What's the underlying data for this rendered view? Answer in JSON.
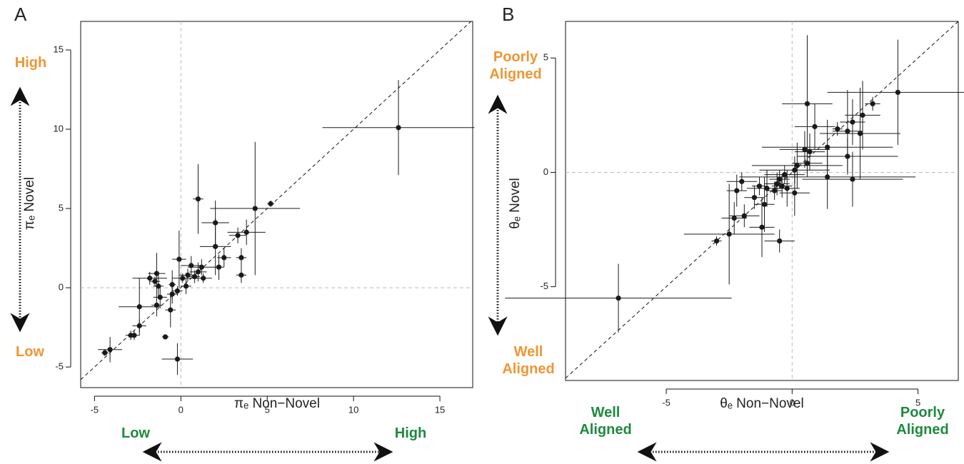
{
  "chart_data": [
    {
      "type": "scatter",
      "panel": "A",
      "xlabel": "πₑ  Non−Novel",
      "ylabel": "πₑ  Novel",
      "xlim": [
        -5.8,
        16.9
      ],
      "ylim": [
        -6.3,
        16.8
      ],
      "xticks": [
        -5,
        0,
        5,
        10,
        15
      ],
      "yticks": [
        -5,
        0,
        5,
        10,
        15
      ],
      "color": "#1a1a1a",
      "x_annotations": [
        "Low",
        "High"
      ],
      "x_annotation_color": "#1e8a3e",
      "y_annotations": [
        "High",
        "Low"
      ],
      "y_annotation_color": "#ee9633",
      "x": [
        12.6,
        5.2,
        4.3,
        3.8,
        3.3,
        3.5,
        3.5,
        2.0,
        1.0,
        2.0,
        2.5,
        2.2,
        1.2,
        1.0,
        0.6,
        0.4,
        0.8,
        1.3,
        0.1,
        -0.1,
        0.3,
        -0.2,
        -0.5,
        -0.5,
        -0.6,
        -1.4,
        -1.3,
        -1.2,
        -1.4,
        -1.8,
        -1.5,
        -2.4,
        -2.4,
        -2.7,
        -2.9,
        -0.9,
        -0.2,
        -4.1,
        -4.4
      ],
      "y": [
        10.1,
        5.3,
        5.0,
        3.5,
        3.3,
        1.9,
        0.8,
        4.1,
        5.6,
        2.6,
        1.9,
        1.3,
        1.3,
        1.0,
        1.4,
        0.8,
        0.7,
        0.6,
        0.6,
        1.8,
        0.1,
        -0.2,
        -0.4,
        0.2,
        -1.4,
        0.9,
        0.1,
        -0.6,
        -1.1,
        0.6,
        0.4,
        -1.2,
        -2.4,
        -3.0,
        -3.0,
        -3.1,
        -4.5,
        -3.9,
        -4.1
      ],
      "xerr": [
        4.4,
        0.2,
        2.6,
        1.1,
        0.5,
        0.3,
        0.3,
        0.8,
        0.3,
        0.9,
        0.4,
        0.3,
        0.8,
        0.5,
        0.6,
        0.5,
        0.3,
        0.5,
        0.6,
        0.4,
        0.3,
        0.3,
        0.3,
        0.2,
        0.3,
        0.5,
        0.3,
        0.4,
        0.3,
        1.0,
        0.3,
        1.2,
        0.4,
        0.3,
        0.3,
        0.2,
        0.9,
        0.7,
        0.2
      ],
      "yerr": [
        3.0,
        0.2,
        4.2,
        0.8,
        0.5,
        0.6,
        0.5,
        1.4,
        2.2,
        1.8,
        0.6,
        0.8,
        0.5,
        0.6,
        0.6,
        0.4,
        0.4,
        0.3,
        0.3,
        1.8,
        0.5,
        0.3,
        0.6,
        0.9,
        1.1,
        1.3,
        0.8,
        0.7,
        0.7,
        0.4,
        0.3,
        1.8,
        0.4,
        0.3,
        0.3,
        0.1,
        1.0,
        0.8,
        0.2
      ]
    },
    {
      "type": "scatter",
      "panel": "B",
      "xlabel": "θₑ  Non−Novel",
      "ylabel": "θₑ  Novel",
      "xlim": [
        -9.0,
        6.6
      ],
      "ylim": [
        -9.1,
        6.6
      ],
      "xticks": [
        -5,
        0,
        5
      ],
      "yticks": [
        -5,
        0,
        5
      ],
      "color": "#1a1a1a",
      "x_annotations": [
        "Well Aligned",
        "Poorly Aligned"
      ],
      "x_annotation_color": "#1e8a3e",
      "y_annotations": [
        "Poorly Aligned",
        "Well Aligned"
      ],
      "y_annotation_color": "#ee9633",
      "x": [
        -6.9,
        4.2,
        3.2,
        2.8,
        2.4,
        1.8,
        0.6,
        0.9,
        2.2,
        2.7,
        1.4,
        0.5,
        0.7,
        2.2,
        0.2,
        0.6,
        1.4,
        2.4,
        0.1,
        -0.3,
        -0.5,
        -0.4,
        -0.6,
        -0.7,
        -0.2,
        0.1,
        -1.0,
        -1.3,
        -1.5,
        -1.1,
        -2.0,
        -2.2,
        -1.9,
        -2.3,
        -2.5,
        -1.2,
        -0.5,
        -3.0
      ],
      "y": [
        -5.5,
        3.5,
        3.0,
        2.5,
        2.2,
        1.9,
        3.0,
        2.0,
        1.8,
        1.7,
        1.1,
        1.0,
        0.9,
        0.7,
        0.3,
        0.4,
        -0.2,
        -0.3,
        0.1,
        -0.1,
        -0.3,
        -0.6,
        -0.5,
        -0.8,
        -0.7,
        -0.9,
        -0.7,
        -0.6,
        -1.1,
        -1.4,
        -0.4,
        -0.8,
        -1.9,
        -2.0,
        -2.7,
        -2.4,
        -3.0,
        -3.0
      ],
      "xerr": [
        4.5,
        2.8,
        0.3,
        0.7,
        0.5,
        0.2,
        1.0,
        0.8,
        0.6,
        1.6,
        2.6,
        1.0,
        0.6,
        2.0,
        1.8,
        0.6,
        3.5,
        2.0,
        1.4,
        0.8,
        0.4,
        0.4,
        0.5,
        0.3,
        0.5,
        0.6,
        0.8,
        0.3,
        0.4,
        0.4,
        0.6,
        0.4,
        0.6,
        0.5,
        1.8,
        0.5,
        0.6,
        0.2
      ],
      "yerr": [
        1.5,
        2.3,
        0.3,
        1.5,
        1.0,
        0.3,
        3.0,
        1.0,
        1.8,
        2.0,
        1.2,
        0.8,
        0.8,
        0.8,
        1.0,
        0.6,
        1.4,
        1.2,
        0.6,
        0.4,
        0.4,
        0.5,
        0.5,
        0.4,
        0.8,
        1.0,
        0.8,
        0.4,
        0.5,
        1.2,
        0.4,
        0.7,
        0.5,
        0.7,
        2.2,
        1.3,
        0.5,
        0.2
      ]
    }
  ]
}
